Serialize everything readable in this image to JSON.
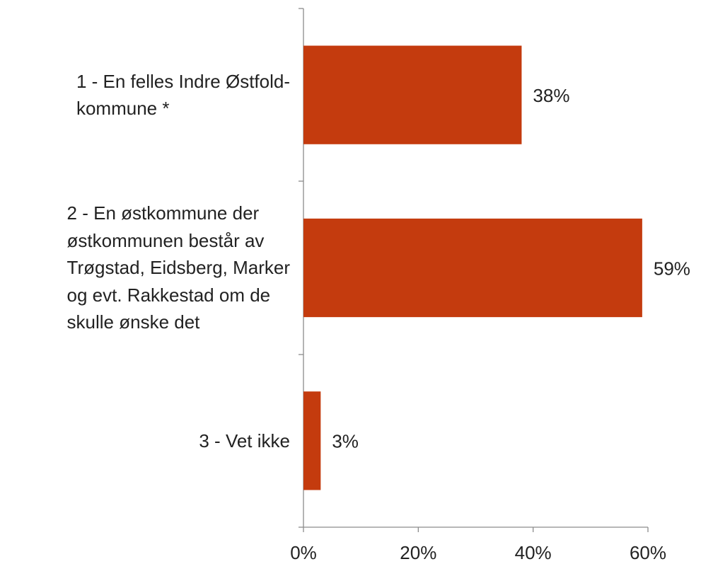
{
  "chart_data": {
    "type": "bar",
    "orientation": "horizontal",
    "categories": [
      "1 - En felles Indre Østfold-\nkommune *",
      "2 - En østkommune der\nøstkommunen består av\nTrøgstad, Eidsberg, Marker\nog evt. Rakkestad om de\nskulle ønske det",
      "3 - Vet ikke"
    ],
    "values": [
      38,
      59,
      3
    ],
    "value_labels": [
      "38%",
      "59%",
      "3%"
    ],
    "color": "#c43b0e",
    "xlim": [
      0,
      60
    ],
    "xticks": [
      {
        "value": 0,
        "label": "0%"
      },
      {
        "value": 20,
        "label": "20%"
      },
      {
        "value": 40,
        "label": "40%"
      },
      {
        "value": 60,
        "label": "60%"
      }
    ]
  }
}
